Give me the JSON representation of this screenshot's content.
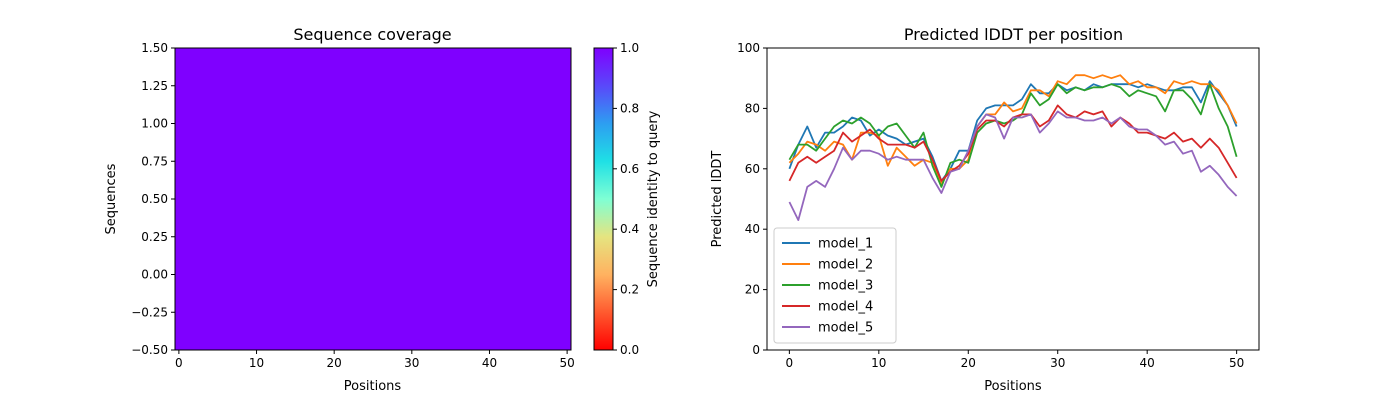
{
  "chart_data": [
    {
      "type": "heatmap",
      "title": "Sequence coverage",
      "xlabel": "Positions",
      "ylabel": "Sequences",
      "xlim": [
        -0.5,
        50.5
      ],
      "ylim": [
        -0.5,
        1.5
      ],
      "xticks": [
        0,
        10,
        20,
        30,
        40,
        50
      ],
      "yticks": [
        -0.5,
        -0.25,
        0.0,
        0.25,
        0.5,
        0.75,
        1.0,
        1.25,
        1.5
      ],
      "ytick_labels": [
        "−0.50",
        "−0.25",
        "0.00",
        "0.25",
        "0.50",
        "0.75",
        "1.00",
        "1.25",
        "1.50"
      ],
      "colormap": "rainbow_r",
      "fill_color": "#7f00ff",
      "rows": [
        {
          "sequence": 0,
          "identity": 1.0,
          "positions": [
            0,
            50
          ]
        }
      ],
      "colorbar": {
        "label": "Sequence identity to query",
        "range": [
          0.0,
          1.0
        ],
        "ticks": [
          0.0,
          0.2,
          0.4,
          0.6,
          0.8,
          1.0
        ],
        "tick_labels": [
          "0.0",
          "0.2",
          "0.4",
          "0.6",
          "0.8",
          "1.0"
        ]
      },
      "grid": false
    },
    {
      "type": "line",
      "title": "Predicted lDDT per position",
      "xlabel": "Positions",
      "ylabel": "Predicted lDDT",
      "xlim": [
        -2.5,
        52.5
      ],
      "ylim": [
        0,
        100
      ],
      "xticks": [
        0,
        10,
        20,
        30,
        40,
        50
      ],
      "yticks": [
        0,
        20,
        40,
        60,
        80,
        100
      ],
      "legend_position": "lower-left",
      "grid": false,
      "x": [
        0,
        1,
        2,
        3,
        4,
        5,
        6,
        7,
        8,
        9,
        10,
        11,
        12,
        13,
        14,
        15,
        16,
        17,
        18,
        19,
        20,
        21,
        22,
        23,
        24,
        25,
        26,
        27,
        28,
        29,
        30,
        31,
        32,
        33,
        34,
        35,
        36,
        37,
        38,
        39,
        40,
        41,
        42,
        43,
        44,
        45,
        46,
        47,
        48,
        49,
        50
      ],
      "series": [
        {
          "name": "model_1",
          "color": "#1f77b4",
          "values": [
            60,
            68,
            74,
            67,
            72,
            72,
            74,
            77,
            76,
            71,
            73,
            71,
            70,
            68,
            69,
            70,
            64,
            56,
            60,
            66,
            66,
            76,
            80,
            81,
            81,
            81,
            83,
            88,
            85,
            85,
            88,
            86,
            87,
            86,
            88,
            87,
            88,
            88,
            88,
            87,
            88,
            87,
            86,
            86,
            87,
            87,
            82,
            89,
            85,
            81,
            74
          ]
        },
        {
          "name": "model_2",
          "color": "#ff7f0e",
          "values": [
            62,
            65,
            69,
            68,
            66,
            69,
            68,
            63,
            72,
            72,
            71,
            61,
            67,
            64,
            61,
            63,
            62,
            55,
            60,
            60,
            63,
            74,
            78,
            78,
            82,
            79,
            80,
            86,
            86,
            84,
            89,
            88,
            91,
            91,
            90,
            91,
            90,
            91,
            88,
            89,
            87,
            87,
            85,
            89,
            88,
            89,
            88,
            88,
            86,
            81,
            75
          ]
        },
        {
          "name": "model_3",
          "color": "#2ca02c",
          "values": [
            63,
            68,
            68,
            66,
            70,
            74,
            76,
            75,
            77,
            75,
            71,
            74,
            75,
            71,
            67,
            72,
            61,
            54,
            62,
            63,
            62,
            72,
            75,
            76,
            75,
            76,
            78,
            85,
            81,
            83,
            88,
            85,
            87,
            86,
            87,
            87,
            88,
            87,
            84,
            86,
            85,
            84,
            79,
            86,
            86,
            83,
            78,
            88,
            80,
            74,
            64
          ]
        },
        {
          "name": "model_4",
          "color": "#d62728",
          "values": [
            56,
            62,
            64,
            62,
            64,
            66,
            72,
            69,
            71,
            73,
            70,
            68,
            68,
            68,
            67,
            69,
            63,
            56,
            59,
            61,
            65,
            73,
            76,
            76,
            74,
            77,
            78,
            78,
            74,
            76,
            81,
            78,
            77,
            79,
            78,
            79,
            74,
            77,
            75,
            72,
            72,
            71,
            70,
            72,
            69,
            70,
            67,
            70,
            67,
            62,
            57
          ]
        },
        {
          "name": "model_5",
          "color": "#9467bd",
          "values": [
            49,
            43,
            54,
            56,
            54,
            60,
            67,
            63,
            66,
            66,
            65,
            63,
            64,
            63,
            63,
            63,
            57,
            52,
            59,
            60,
            66,
            74,
            78,
            77,
            70,
            77,
            77,
            78,
            72,
            75,
            79,
            77,
            77,
            76,
            76,
            77,
            75,
            77,
            74,
            73,
            73,
            71,
            68,
            69,
            65,
            66,
            59,
            61,
            58,
            54,
            51
          ]
        }
      ]
    }
  ]
}
